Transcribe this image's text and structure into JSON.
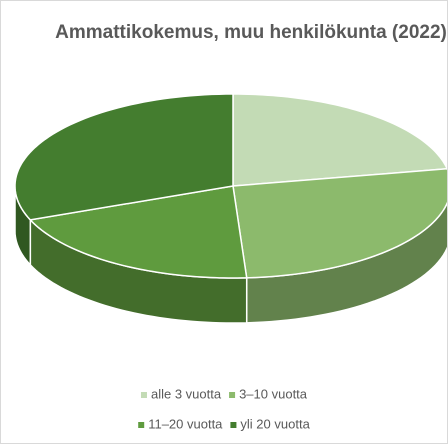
{
  "chart_data": {
    "type": "pie3d",
    "title": "Ammattikokemus, muu henkilökunta (2022)",
    "categories": [
      "alle 3 vuotta",
      "3–10 vuotta",
      "11–20 vuotta",
      "yli 20 vuotta"
    ],
    "values": [
      22,
      27,
      20,
      31
    ],
    "colors": [
      "#c3dbb5",
      "#8cba6c",
      "#5f9b3e",
      "#447d2f"
    ]
  }
}
